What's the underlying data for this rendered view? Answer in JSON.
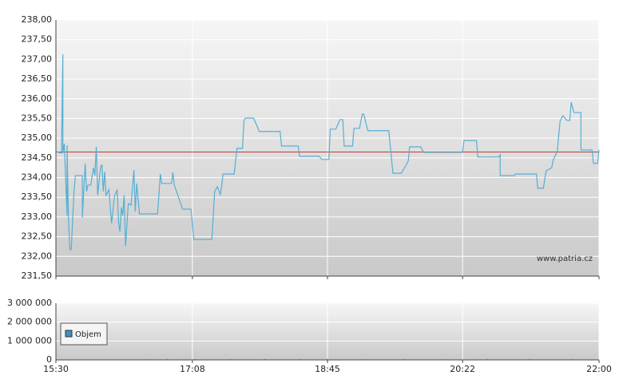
{
  "chart_data": [
    {
      "type": "line",
      "color": "#56aed4",
      "xlim": [
        930,
        1320
      ],
      "ylim": [
        231.5,
        238
      ],
      "xticks": [
        930,
        1028,
        1125,
        1222,
        1320
      ],
      "yticks": [
        {
          "value": 231.5,
          "label": "231,50"
        },
        {
          "value": 232,
          "label": "232,00"
        },
        {
          "value": 232.5,
          "label": "232,50"
        },
        {
          "value": 233,
          "label": "233,00"
        },
        {
          "value": 233.5,
          "label": "233,50"
        },
        {
          "value": 234,
          "label": "234,00"
        },
        {
          "value": 234.5,
          "label": "234,50"
        },
        {
          "value": 235,
          "label": "235,00"
        },
        {
          "value": 235.5,
          "label": "235,50"
        },
        {
          "value": 236,
          "label": "236,00"
        },
        {
          "value": 236.5,
          "label": "236,50"
        },
        {
          "value": 237,
          "label": "237,00"
        },
        {
          "value": 237.5,
          "label": "237,50"
        },
        {
          "value": 238,
          "label": "238,00"
        }
      ],
      "grid": true,
      "reference_line": {
        "value": 234.65,
        "color": "#c0392b"
      },
      "annotation": "www.patria.cz",
      "x": [
        930,
        934,
        935,
        935,
        936,
        938,
        938,
        939,
        940,
        941,
        943,
        944,
        949,
        949,
        951,
        952,
        953,
        955,
        957,
        958,
        959,
        960,
        962,
        963,
        964,
        965,
        966,
        968,
        970,
        972,
        974,
        975,
        976,
        977,
        978,
        979,
        980,
        982,
        984,
        986,
        987,
        988,
        990,
        1003,
        1005,
        1006,
        1013,
        1014,
        1015,
        1021,
        1027,
        1029,
        1042,
        1044,
        1046,
        1048,
        1049,
        1050,
        1058,
        1060,
        1064,
        1065,
        1066,
        1072,
        1076,
        1091,
        1092,
        1104,
        1105,
        1119,
        1121,
        1126,
        1127,
        1131,
        1134,
        1136,
        1137,
        1143,
        1144,
        1148,
        1150,
        1151,
        1154,
        1169,
        1172,
        1178,
        1181,
        1183,
        1184,
        1192,
        1194,
        1222,
        1223,
        1232,
        1233,
        1248,
        1249,
        1249,
        1259,
        1260,
        1275,
        1276,
        1280,
        1282,
        1286,
        1287,
        1290,
        1292,
        1294,
        1297,
        1299,
        1300,
        1302,
        1307,
        1307,
        1315,
        1316,
        1319,
        1320
      ],
      "values": [
        234.66,
        234.62,
        237.13,
        234.62,
        234.86,
        233.04,
        234.82,
        232.98,
        232.17,
        232.17,
        233.65,
        234.05,
        234.05,
        232.98,
        234.36,
        233.65,
        233.81,
        233.81,
        234.25,
        234.05,
        234.78,
        233.55,
        234.25,
        234.33,
        233.65,
        234.15,
        233.55,
        233.69,
        232.84,
        233.52,
        233.69,
        232.84,
        232.63,
        233.24,
        233.04,
        233.55,
        232.27,
        233.34,
        233.3,
        234.19,
        233.14,
        233.85,
        233.08,
        233.08,
        234.09,
        233.85,
        233.85,
        234.13,
        233.81,
        233.2,
        233.2,
        232.43,
        232.43,
        233.65,
        233.77,
        233.57,
        233.77,
        234.09,
        234.09,
        234.74,
        234.74,
        235.43,
        235.51,
        235.51,
        235.17,
        235.17,
        234.8,
        234.8,
        234.54,
        234.54,
        234.46,
        234.46,
        235.23,
        235.23,
        235.47,
        235.47,
        234.8,
        234.8,
        235.25,
        235.25,
        235.61,
        235.61,
        235.19,
        235.19,
        234.11,
        234.11,
        234.29,
        234.42,
        234.78,
        234.78,
        234.64,
        234.64,
        234.94,
        234.94,
        234.52,
        234.52,
        234.58,
        234.05,
        234.05,
        234.09,
        234.09,
        233.73,
        233.73,
        234.17,
        234.25,
        234.44,
        234.66,
        235.43,
        235.57,
        235.45,
        235.45,
        235.91,
        235.65,
        235.65,
        234.7,
        234.7,
        234.36,
        234.36,
        234.7
      ]
    },
    {
      "type": "bar",
      "xlim": [
        930,
        1320
      ],
      "ylim": [
        0,
        3000000
      ],
      "xticks": [
        {
          "value": 930,
          "label": "15:30"
        },
        {
          "value": 1028,
          "label": "17:08"
        },
        {
          "value": 1125,
          "label": "18:45"
        },
        {
          "value": 1222,
          "label": "20:22"
        },
        {
          "value": 1320,
          "label": "22:00"
        }
      ],
      "yticks": [
        0,
        {
          "value": 1000000,
          "label": "1 000 000"
        },
        {
          "value": 2000000,
          "label": "2 000 000"
        },
        {
          "value": 3000000,
          "label": "3 000 000"
        }
      ],
      "grid": true,
      "series": [
        {
          "name": "Objem",
          "color": "#3d8fc4",
          "x": [
            995,
            1010,
            1030,
            1055,
            1080,
            1105,
            1125,
            1150,
            1180,
            1210,
            1240,
            1270,
            1300
          ],
          "values": [
            15000,
            12000,
            18000,
            14000,
            16000,
            20000,
            55000,
            22000,
            15000,
            17000,
            25000,
            18000,
            30000
          ]
        }
      ]
    }
  ]
}
